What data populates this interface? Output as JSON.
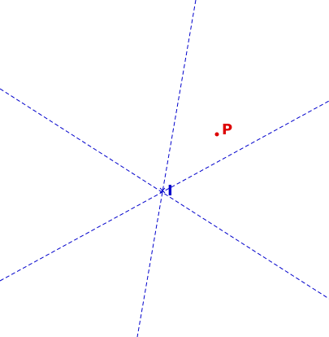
{
  "diagram": {
    "description_labels": {
      "point_p": "P",
      "point_i": "I"
    },
    "colors": {
      "line": "#0000cc",
      "point_p": "#dd0000",
      "point_i": "#0000cc",
      "background": "#ffffff"
    }
  }
}
